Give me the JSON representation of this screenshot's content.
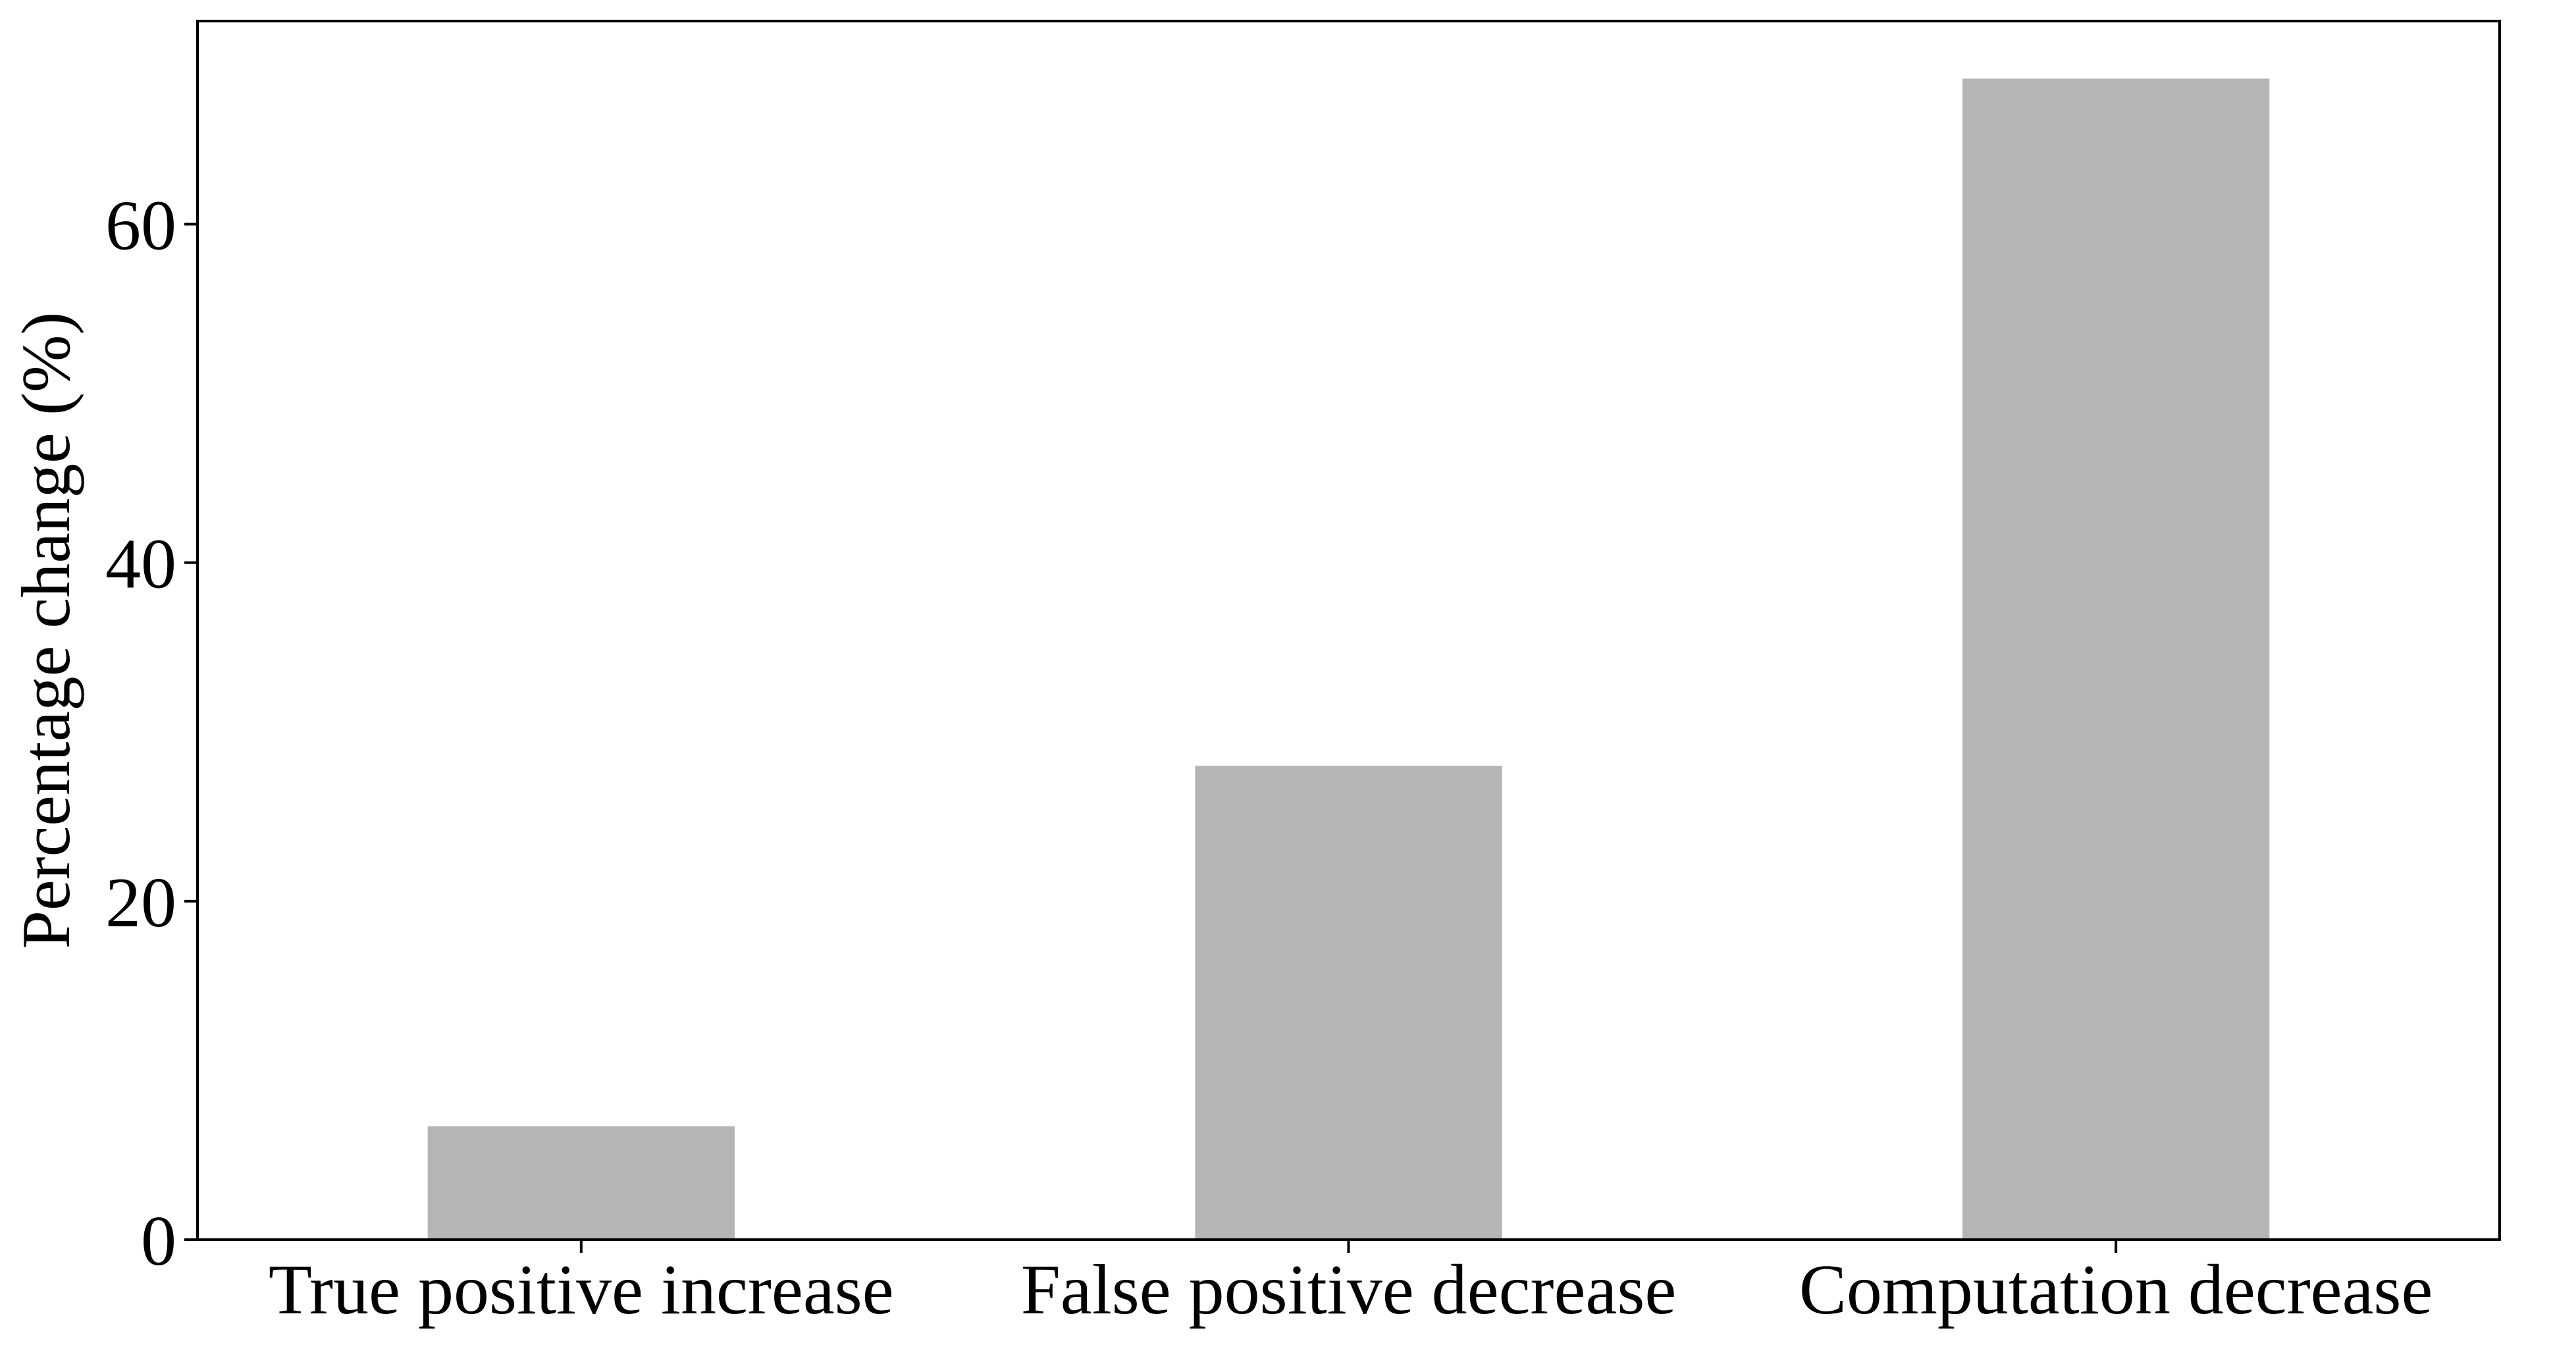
{
  "chart_data": {
    "type": "bar",
    "title": "",
    "xlabel": "",
    "ylabel": "Percentage change (%)",
    "categories": [
      "True positive increase",
      "False positive decrease",
      "Computation decrease"
    ],
    "values": [
      6.7,
      28.0,
      68.6
    ],
    "ylim": [
      0,
      72
    ],
    "yticks": [
      0,
      20,
      40,
      60
    ],
    "grid": false,
    "legend": "none",
    "bar_color": "#b5b5b5",
    "axis_color": "#000000"
  }
}
